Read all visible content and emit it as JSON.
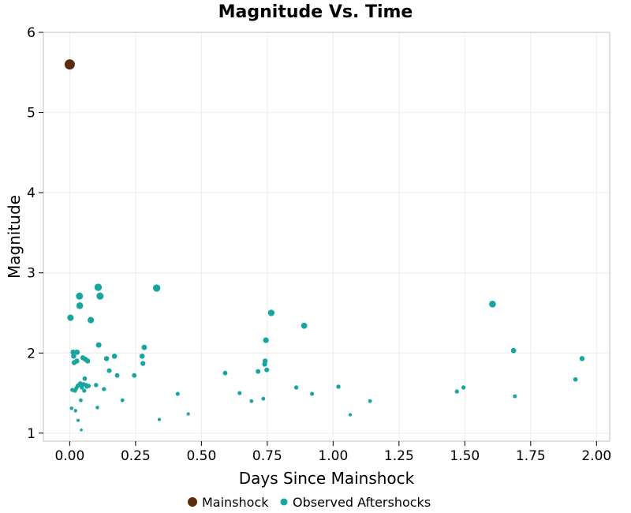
{
  "chart_data": {
    "type": "scatter",
    "title": "Magnitude Vs. Time",
    "xlabel": "Days Since Mainshock",
    "ylabel": "Magnitude",
    "xlim": [
      -0.1,
      2.05
    ],
    "ylim": [
      0.9,
      6
    ],
    "xticks": [
      "0.00",
      "0.25",
      "0.50",
      "0.75",
      "1.00",
      "1.25",
      "1.50",
      "1.75",
      "2.00"
    ],
    "xtick_values": [
      0,
      0.25,
      0.5,
      0.75,
      1.0,
      1.25,
      1.5,
      1.75,
      2.0
    ],
    "yticks": [
      "1",
      "2",
      "3",
      "4",
      "5",
      "6"
    ],
    "ytick_values": [
      1,
      2,
      3,
      4,
      5,
      6
    ],
    "grid": true,
    "legend_placement": "bottom",
    "series": [
      {
        "name": "Mainshock",
        "color": "#5a2e0c",
        "points": [
          [
            0.0,
            5.6
          ]
        ]
      },
      {
        "name": "Observed Aftershocks",
        "color": "#17a5a0",
        "points": [
          [
            0.003,
            2.44
          ],
          [
            0.007,
            1.31
          ],
          [
            0.01,
            1.54
          ],
          [
            0.013,
            2.01
          ],
          [
            0.015,
            1.96
          ],
          [
            0.017,
            1.88
          ],
          [
            0.02,
            1.53
          ],
          [
            0.022,
            1.28
          ],
          [
            0.025,
            1.56
          ],
          [
            0.027,
            1.9
          ],
          [
            0.028,
            2.01
          ],
          [
            0.03,
            1.59
          ],
          [
            0.032,
            1.16
          ],
          [
            0.035,
            1.6
          ],
          [
            0.037,
            2.71
          ],
          [
            0.038,
            2.59
          ],
          [
            0.04,
            1.62
          ],
          [
            0.042,
            1.41
          ],
          [
            0.044,
            1.04
          ],
          [
            0.046,
            1.57
          ],
          [
            0.05,
            1.94
          ],
          [
            0.052,
            1.61
          ],
          [
            0.055,
            1.53
          ],
          [
            0.057,
            1.68
          ],
          [
            0.06,
            1.92
          ],
          [
            0.062,
            1.6
          ],
          [
            0.065,
            1.58
          ],
          [
            0.068,
            1.9
          ],
          [
            0.072,
            1.59
          ],
          [
            0.08,
            2.41
          ],
          [
            0.1,
            1.6
          ],
          [
            0.105,
            1.32
          ],
          [
            0.108,
            2.82
          ],
          [
            0.11,
            2.1
          ],
          [
            0.115,
            2.71
          ],
          [
            0.13,
            1.55
          ],
          [
            0.14,
            1.93
          ],
          [
            0.15,
            1.78
          ],
          [
            0.17,
            1.96
          ],
          [
            0.18,
            1.72
          ],
          [
            0.2,
            1.41
          ],
          [
            0.245,
            1.72
          ],
          [
            0.275,
            1.96
          ],
          [
            0.278,
            1.87
          ],
          [
            0.283,
            2.07
          ],
          [
            0.33,
            2.81
          ],
          [
            0.34,
            1.17
          ],
          [
            0.41,
            1.49
          ],
          [
            0.45,
            1.24
          ],
          [
            0.59,
            1.75
          ],
          [
            0.645,
            1.5
          ],
          [
            0.69,
            1.4
          ],
          [
            0.715,
            1.77
          ],
          [
            0.735,
            1.43
          ],
          [
            0.74,
            1.86
          ],
          [
            0.742,
            1.9
          ],
          [
            0.745,
            2.16
          ],
          [
            0.748,
            1.79
          ],
          [
            0.765,
            2.5
          ],
          [
            0.86,
            1.57
          ],
          [
            0.89,
            2.34
          ],
          [
            0.92,
            1.49
          ],
          [
            1.02,
            1.58
          ],
          [
            1.065,
            1.23
          ],
          [
            1.14,
            1.4
          ],
          [
            1.47,
            1.52
          ],
          [
            1.495,
            1.57
          ],
          [
            1.605,
            2.61
          ],
          [
            1.685,
            2.03
          ],
          [
            1.69,
            1.46
          ],
          [
            1.92,
            1.67
          ],
          [
            1.945,
            1.93
          ]
        ]
      }
    ]
  }
}
